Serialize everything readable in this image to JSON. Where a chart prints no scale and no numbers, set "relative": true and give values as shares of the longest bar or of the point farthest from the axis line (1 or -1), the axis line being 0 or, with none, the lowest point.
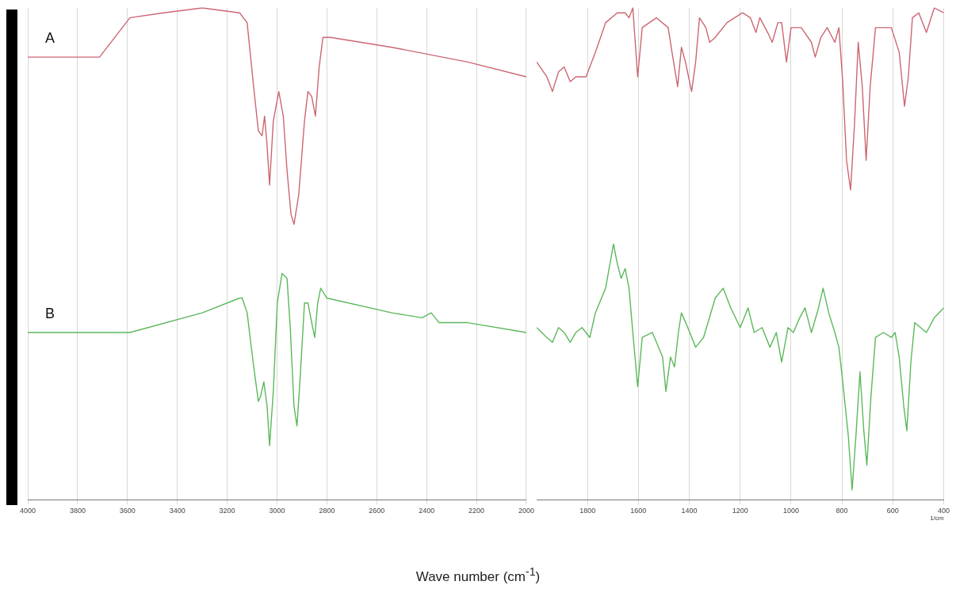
{
  "chart_data": [
    {
      "type": "line",
      "xlabel": "Wave number (cm$^{-1}$)",
      "relative": true,
      "xlim": [
        4000,
        2000
      ],
      "xticks": [
        4000,
        3800,
        3600,
        3400,
        3200,
        3000,
        2800,
        2600,
        2400,
        2200,
        2000
      ],
      "grid": "x",
      "series": [
        {
          "name": "A",
          "color": "#cc6670",
          "x": [
            4000,
            3712,
            3590,
            3456,
            3300,
            3150,
            3120,
            3096,
            3075,
            3060,
            3050,
            3040,
            3030,
            3015,
            2993,
            2975,
            2960,
            2944,
            2932,
            2913,
            2890,
            2876,
            2861,
            2846,
            2831,
            2816,
            2785,
            2540,
            2235,
            2000
          ],
          "values": [
            0.9,
            0.9,
            0.98,
            0.99,
            1,
            0.99,
            0.97,
            0.85,
            0.75,
            0.74,
            0.78,
            0.72,
            0.64,
            0.77,
            0.83,
            0.78,
            0.67,
            0.58,
            0.56,
            0.62,
            0.77,
            0.83,
            0.82,
            0.78,
            0.88,
            0.94,
            0.94,
            0.92,
            0.89,
            0.86
          ]
        },
        {
          "name": "B",
          "color": "#5cb85c",
          "x": [
            4000,
            3590,
            3300,
            3150,
            3140,
            3120,
            3096,
            3075,
            3066,
            3053,
            3040,
            3030,
            3015,
            2999,
            2980,
            2960,
            2947,
            2932,
            2920,
            2907,
            2890,
            2876,
            2861,
            2849,
            2837,
            2825,
            2800,
            2540,
            2418,
            2382,
            2350,
            2235,
            2000
          ],
          "values": [
            0.34,
            0.34,
            0.38,
            0.41,
            0.41,
            0.38,
            0.28,
            0.2,
            0.21,
            0.24,
            0.19,
            0.11,
            0.22,
            0.4,
            0.46,
            0.45,
            0.35,
            0.19,
            0.15,
            0.25,
            0.4,
            0.4,
            0.36,
            0.33,
            0.4,
            0.43,
            0.41,
            0.38,
            0.37,
            0.38,
            0.36,
            0.36,
            0.34
          ]
        }
      ]
    },
    {
      "type": "line",
      "relative": true,
      "xlim": [
        2000,
        400
      ],
      "xticks": [
        1800,
        1600,
        1400,
        1200,
        1000,
        800,
        600,
        400
      ],
      "grid": "x",
      "annotations": [
        "1/cm"
      ],
      "series": [
        {
          "color": "#cc6670",
          "x": [
            2000,
            1960,
            1938,
            1914,
            1892,
            1868,
            1846,
            1806,
            1769,
            1729,
            1683,
            1652,
            1637,
            1622,
            1603,
            1585,
            1529,
            1483,
            1468,
            1446,
            1431,
            1415,
            1391,
            1375,
            1360,
            1335,
            1320,
            1298,
            1252,
            1191,
            1160,
            1138,
            1123,
            1092,
            1074,
            1052,
            1037,
            1018,
            1000,
            960,
            920,
            905,
            883,
            858,
            828,
            812,
            797,
            782,
            766,
            751,
            736,
            720,
            705,
            689,
            668,
            606,
            575,
            554,
            539,
            523,
            498,
            468,
            437,
            400
          ],
          "values": [
            0.89,
            0.86,
            0.83,
            0.87,
            0.88,
            0.85,
            0.86,
            0.86,
            0.91,
            0.97,
            0.99,
            0.99,
            0.98,
            1,
            0.86,
            0.96,
            0.98,
            0.96,
            0.91,
            0.84,
            0.92,
            0.89,
            0.83,
            0.89,
            0.98,
            0.96,
            0.93,
            0.94,
            0.97,
            0.99,
            0.98,
            0.95,
            0.98,
            0.95,
            0.93,
            0.97,
            0.97,
            0.89,
            0.96,
            0.96,
            0.93,
            0.9,
            0.94,
            0.96,
            0.93,
            0.96,
            0.85,
            0.69,
            0.63,
            0.76,
            0.93,
            0.84,
            0.69,
            0.84,
            0.96,
            0.96,
            0.91,
            0.8,
            0.86,
            0.98,
            0.99,
            0.95,
            1,
            0.99
          ]
        },
        {
          "color": "#5cb85c",
          "x": [
            2000,
            1960,
            1938,
            1914,
            1892,
            1868,
            1846,
            1822,
            1791,
            1769,
            1729,
            1698,
            1683,
            1668,
            1652,
            1637,
            1622,
            1603,
            1585,
            1545,
            1505,
            1492,
            1474,
            1458,
            1443,
            1431,
            1406,
            1375,
            1344,
            1298,
            1267,
            1237,
            1200,
            1169,
            1145,
            1114,
            1083,
            1058,
            1037,
            1012,
            991,
            966,
            945,
            920,
            892,
            874,
            852,
            828,
            812,
            797,
            775,
            760,
            745,
            729,
            714,
            702,
            686,
            668,
            637,
            606,
            591,
            575,
            557,
            545,
            529,
            514,
            468,
            437,
            400
          ],
          "values": [
            0.35,
            0.33,
            0.32,
            0.35,
            0.34,
            0.32,
            0.34,
            0.35,
            0.33,
            0.38,
            0.43,
            0.52,
            0.48,
            0.45,
            0.47,
            0.43,
            0.34,
            0.23,
            0.33,
            0.34,
            0.29,
            0.22,
            0.29,
            0.27,
            0.34,
            0.38,
            0.35,
            0.31,
            0.33,
            0.41,
            0.43,
            0.39,
            0.35,
            0.39,
            0.34,
            0.35,
            0.31,
            0.34,
            0.28,
            0.35,
            0.34,
            0.37,
            0.39,
            0.34,
            0.39,
            0.43,
            0.38,
            0.34,
            0.31,
            0.24,
            0.13,
            0.02,
            0.13,
            0.26,
            0.14,
            0.07,
            0.21,
            0.33,
            0.34,
            0.33,
            0.34,
            0.29,
            0.19,
            0.14,
            0.28,
            0.36,
            0.34,
            0.37,
            0.39
          ]
        }
      ]
    }
  ]
}
